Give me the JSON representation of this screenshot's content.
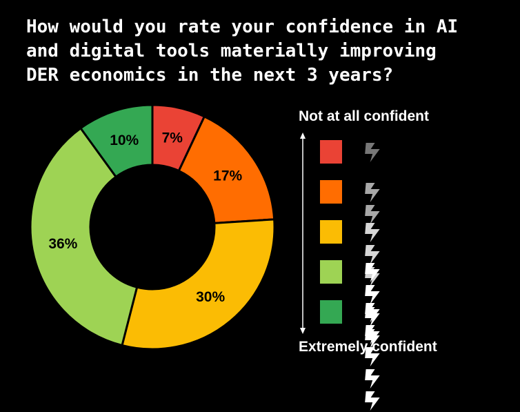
{
  "title_lines": [
    "How would you rate your confidence in AI",
    "and digital tools materially improving",
    "DER economics in the next 3 years?"
  ],
  "scale": {
    "top_label": "Not at all confident",
    "bottom_label": "Extremely confident"
  },
  "chart_data": {
    "type": "pie",
    "donut": true,
    "title": "How would you rate your confidence in AI and digital tools materially improving DER economics in the next 3 years?",
    "slices": [
      {
        "label": "1 bolt",
        "value": 7,
        "display": "7%",
        "color": "#ea4335",
        "bolts": 1
      },
      {
        "label": "2 bolts",
        "value": 17,
        "display": "17%",
        "color": "#ff6d01",
        "bolts": 2
      },
      {
        "label": "3 bolts",
        "value": 30,
        "display": "30%",
        "color": "#fbbc04",
        "bolts": 3
      },
      {
        "label": "4 bolts",
        "value": 36,
        "display": "36%",
        "color": "#9ed354",
        "bolts": 4
      },
      {
        "label": "5 bolts",
        "value": 10,
        "display": "10%",
        "color": "#34a853",
        "bolts": 5
      }
    ],
    "bolt_colors": [
      "#777777",
      "#a8a8a8",
      "#d6d6d6",
      "#ffffff",
      "#ffffff"
    ],
    "legend_placement": "right"
  }
}
